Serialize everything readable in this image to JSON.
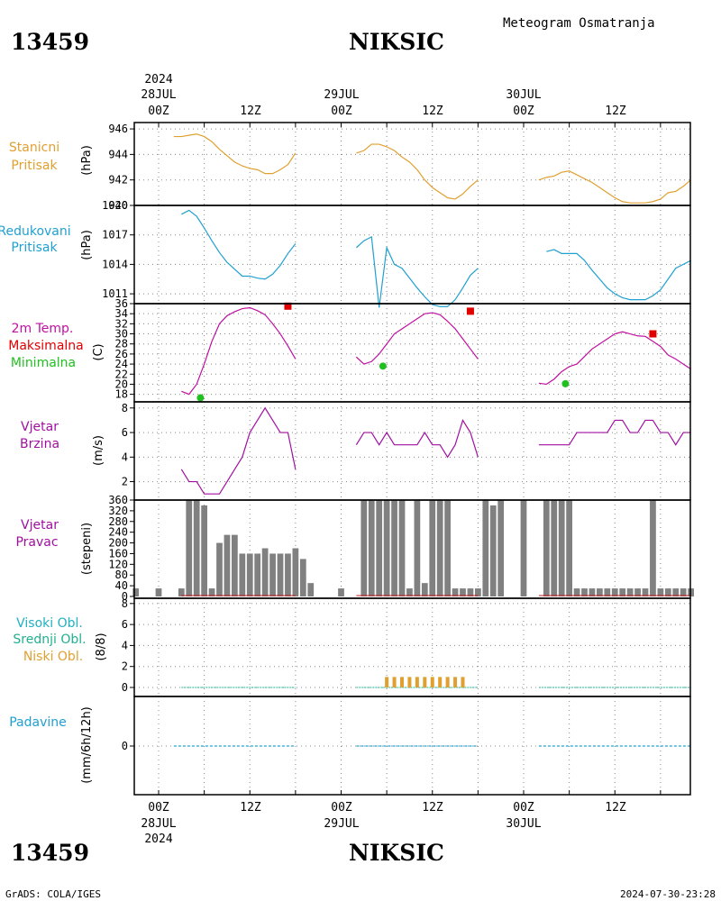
{
  "header": {
    "station_id": "13459",
    "station_name": "NIKSIC",
    "product": "Meteogram Osmatranja"
  },
  "time_axis": {
    "year": "2024",
    "day_labels": [
      "28JUL",
      "29JUL",
      "30JUL"
    ],
    "hour_labels": [
      "00Z",
      "12Z",
      "00Z",
      "12Z",
      "00Z",
      "12Z"
    ]
  },
  "footer": {
    "credit": "GrADS: COLA/IGES",
    "timestamp": "2024-07-30-23:28"
  },
  "colors": {
    "pressure": "#e0a030",
    "reduced": "#20a0d0",
    "temperature": "#c010a0",
    "maximum": "#e00000",
    "minimum": "#20c020",
    "wind": "#a010a0",
    "bars": "#808080",
    "low_cloud": "#e0a030",
    "high_cloud": "#20b0c0",
    "mid_cloud": "#20b090",
    "precip": "#20a0d0"
  },
  "panels": {
    "p1": {
      "label1": "Stanicni",
      "label2": "Pritisak",
      "unit": "(hPa)",
      "ticks": [
        "946",
        "944",
        "942",
        "940"
      ]
    },
    "p2": {
      "label1": "Redukovani",
      "label2": "Pritisak",
      "unit": "(hPa)",
      "ticks": [
        "1020",
        "1017",
        "1014",
        "1011"
      ]
    },
    "p3": {
      "label1": "2m Temp.",
      "label2": "Maksimalna",
      "label3": "Minimalna",
      "unit": "(C)",
      "ticks": [
        "36",
        "34",
        "32",
        "30",
        "28",
        "26",
        "24",
        "22",
        "20",
        "18"
      ]
    },
    "p4": {
      "label1": "Vjetar",
      "label2": "Brzina",
      "unit": "(m/s)",
      "ticks": [
        "8",
        "6",
        "4",
        "2"
      ]
    },
    "p5": {
      "label1": "Vjetar",
      "label2": "Pravac",
      "unit": "(stepeni)",
      "ticks": [
        "360",
        "320",
        "280",
        "240",
        "200",
        "160",
        "120",
        "80",
        "40",
        "0"
      ]
    },
    "p6": {
      "label1": "Visoki Obl.",
      "label2": "Srednji Obl.",
      "label3": "Niski Obl.",
      "unit": "(8/8)",
      "ticks": [
        "8",
        "6",
        "4",
        "2",
        "0"
      ]
    },
    "p7": {
      "label1": "Padavine",
      "unit": "(mm/6h/12h)",
      "ticks": [
        "0"
      ]
    }
  },
  "chart_data": [
    {
      "type": "line",
      "title": "Stanicni Pritisak",
      "ylabel": "(hPa)",
      "x_unit": "hours since 2024-07-28 00Z",
      "ylim": [
        940,
        946.5
      ],
      "segments": [
        {
          "x": [
            2,
            3,
            4,
            5,
            6,
            7,
            8,
            9,
            10,
            11,
            12,
            13,
            14,
            15,
            16,
            17,
            18
          ],
          "y": [
            945.4,
            945.4,
            945.5,
            945.6,
            945.4,
            945.0,
            944.4,
            943.9,
            943.4,
            943.1,
            942.9,
            942.8,
            942.5,
            942.5,
            942.8,
            943.2,
            944.1
          ]
        },
        {
          "x": [
            26,
            27,
            28,
            29,
            30,
            31,
            32,
            33,
            34,
            35,
            36,
            37,
            38,
            39,
            40,
            41,
            42
          ],
          "y": [
            944.1,
            944.3,
            944.8,
            944.8,
            944.6,
            944.3,
            943.8,
            943.4,
            942.8,
            942.0,
            941.4,
            941.0,
            940.6,
            940.5,
            940.9,
            941.5,
            942.0
          ]
        },
        {
          "x": [
            50,
            51,
            52,
            53,
            54,
            55,
            56,
            57,
            58,
            59,
            60,
            61,
            62,
            63,
            64,
            65,
            66,
            67,
            68,
            69,
            70
          ],
          "y": [
            942.0,
            942.2,
            942.3,
            942.6,
            942.7,
            942.4,
            942.1,
            941.8,
            941.4,
            941.0,
            940.6,
            940.3,
            940.2,
            940.2,
            940.2,
            940.3,
            940.5,
            941.0,
            941.1,
            941.5,
            942.0
          ]
        }
      ]
    },
    {
      "type": "line",
      "title": "Redukovani Pritisak",
      "ylabel": "(hPa)",
      "ylim": [
        1010,
        1020
      ],
      "segments": [
        {
          "x": [
            3,
            4,
            5,
            6,
            7,
            8,
            9,
            10,
            11,
            12,
            13,
            14,
            15,
            16,
            17,
            18
          ],
          "y": [
            1019.1,
            1019.5,
            1018.9,
            1017.7,
            1016.4,
            1015.2,
            1014.2,
            1013.5,
            1012.8,
            1012.8,
            1012.6,
            1012.5,
            1013.0,
            1013.9,
            1015.1,
            1016.1
          ]
        },
        {
          "x": [
            26,
            27,
            28,
            29,
            30,
            31,
            32,
            33,
            34,
            35,
            36,
            37,
            38,
            39,
            40,
            41,
            42
          ],
          "y": [
            1015.7,
            1016.4,
            1016.8,
            1009.6,
            1015.7,
            1014.0,
            1013.6,
            1012.6,
            1011.6,
            1010.7,
            1009.9,
            1009.7,
            1009.7,
            1010.4,
            1011.6,
            1012.9,
            1013.6
          ]
        },
        {
          "x": [
            51,
            52,
            53,
            54,
            55,
            56,
            57,
            58,
            59,
            60,
            61,
            62,
            63,
            64,
            65,
            66,
            67,
            68,
            69,
            70
          ],
          "y": [
            1015.3,
            1015.5,
            1015.1,
            1015.1,
            1015.1,
            1014.4,
            1013.4,
            1012.5,
            1011.6,
            1011.0,
            1010.6,
            1010.4,
            1010.4,
            1010.4,
            1010.8,
            1011.4,
            1012.5,
            1013.6,
            1014.0,
            1014.4
          ]
        }
      ]
    },
    {
      "type": "line",
      "title": "2m Temp.",
      "ylabel": "(C)",
      "ylim": [
        16.5,
        36
      ],
      "segments": [
        {
          "x": [
            3,
            4,
            5,
            6,
            7,
            8,
            9,
            10,
            11,
            12,
            13,
            14,
            15,
            16,
            17,
            18
          ],
          "y": [
            18.6,
            18.0,
            20.0,
            24.0,
            28.5,
            32.0,
            33.6,
            34.4,
            35.0,
            35.2,
            34.6,
            33.8,
            32.0,
            30.0,
            27.6,
            25.0
          ]
        },
        {
          "x": [
            26,
            27,
            28,
            29,
            30,
            31,
            32,
            33,
            34,
            35,
            36,
            37,
            38,
            39,
            40,
            41,
            42
          ],
          "y": [
            25.4,
            24.0,
            24.5,
            26.0,
            28.0,
            30.0,
            31.0,
            32.0,
            33.0,
            34.0,
            34.2,
            33.8,
            32.5,
            31.0,
            29.0,
            27.0,
            25.0
          ]
        },
        {
          "x": [
            50,
            51,
            52,
            53,
            54,
            55,
            56,
            57,
            58,
            59,
            60,
            61,
            62,
            63,
            64,
            65,
            66,
            67,
            68,
            69,
            70
          ],
          "y": [
            20.2,
            20.0,
            21.0,
            22.5,
            23.5,
            24.0,
            25.5,
            27.0,
            28.0,
            29.0,
            30.0,
            30.4,
            30.0,
            29.6,
            29.5,
            28.5,
            27.5,
            25.8,
            25.0,
            24.0,
            23.0
          ]
        }
      ],
      "maximum": {
        "x": [
          17,
          41,
          65
        ],
        "y": [
          35.5,
          34.5,
          30.0
        ]
      },
      "minimum": {
        "x": [
          5.5,
          29.5,
          53.5
        ],
        "y": [
          17.3,
          23.6,
          20.1
        ]
      }
    },
    {
      "type": "line",
      "title": "Vjetar Brzina",
      "ylabel": "(m/s)",
      "ylim": [
        0.5,
        8.5
      ],
      "segments": [
        {
          "x": [
            3,
            4,
            5,
            6,
            7,
            8,
            9,
            10,
            11,
            12,
            13,
            14,
            15,
            16,
            17,
            18
          ],
          "y": [
            3,
            2,
            2,
            1,
            1,
            1,
            2,
            3,
            4,
            6,
            7,
            8,
            7,
            6,
            6,
            3
          ]
        },
        {
          "x": [
            26,
            27,
            28,
            29,
            30,
            31,
            32,
            33,
            34,
            35,
            36,
            37,
            38,
            39,
            40,
            41,
            42
          ],
          "y": [
            5,
            6,
            6,
            5,
            6,
            5,
            5,
            5,
            5,
            6,
            5,
            5,
            4,
            5,
            7,
            6,
            4
          ]
        },
        {
          "x": [
            50,
            51,
            52,
            53,
            54,
            55,
            56,
            57,
            58,
            59,
            60,
            61,
            62,
            63,
            64,
            65,
            66,
            67,
            68,
            69,
            70
          ],
          "y": [
            5,
            5,
            5,
            5,
            5,
            6,
            6,
            6,
            6,
            6,
            7,
            7,
            6,
            6,
            7,
            7,
            6,
            6,
            5,
            6,
            6
          ]
        }
      ]
    },
    {
      "type": "bar",
      "title": "Vjetar Pravac",
      "ylabel": "(stepeni)",
      "ylim": [
        0,
        360
      ],
      "x": [
        -3,
        0,
        3,
        4,
        5,
        6,
        7,
        8,
        9,
        10,
        11,
        12,
        13,
        14,
        15,
        16,
        17,
        18,
        19,
        20,
        24,
        27,
        28,
        29,
        30,
        31,
        32,
        33,
        34,
        35,
        36,
        37,
        38,
        39,
        40,
        41,
        42,
        43,
        44,
        45,
        48,
        51,
        52,
        53,
        54,
        55,
        56,
        57,
        58,
        59,
        60,
        61,
        62,
        63,
        64,
        65,
        66,
        67,
        68,
        69,
        70
      ],
      "values": [
        30,
        30,
        30,
        360,
        360,
        340,
        30,
        200,
        230,
        230,
        160,
        160,
        160,
        180,
        160,
        160,
        160,
        180,
        140,
        50,
        30,
        360,
        360,
        360,
        360,
        360,
        360,
        30,
        360,
        50,
        360,
        360,
        360,
        30,
        30,
        30,
        30,
        360,
        340,
        360,
        360,
        360,
        360,
        360,
        360,
        30,
        30,
        30,
        30,
        30,
        30,
        30,
        30,
        30,
        30,
        360,
        30,
        30,
        30,
        30,
        30
      ]
    },
    {
      "type": "bar",
      "title": "Niski Obl.",
      "ylabel": "(8/8)",
      "ylim": [
        0,
        8.5
      ],
      "x": [
        30,
        31,
        32,
        33,
        34,
        35,
        36,
        37,
        38,
        39,
        40
      ],
      "values": [
        1,
        1,
        1,
        1,
        1,
        1,
        1,
        1,
        1,
        1,
        1
      ]
    },
    {
      "type": "line",
      "title": "Padavine",
      "ylabel": "(mm/6h/12h)",
      "y": [
        0
      ]
    }
  ]
}
